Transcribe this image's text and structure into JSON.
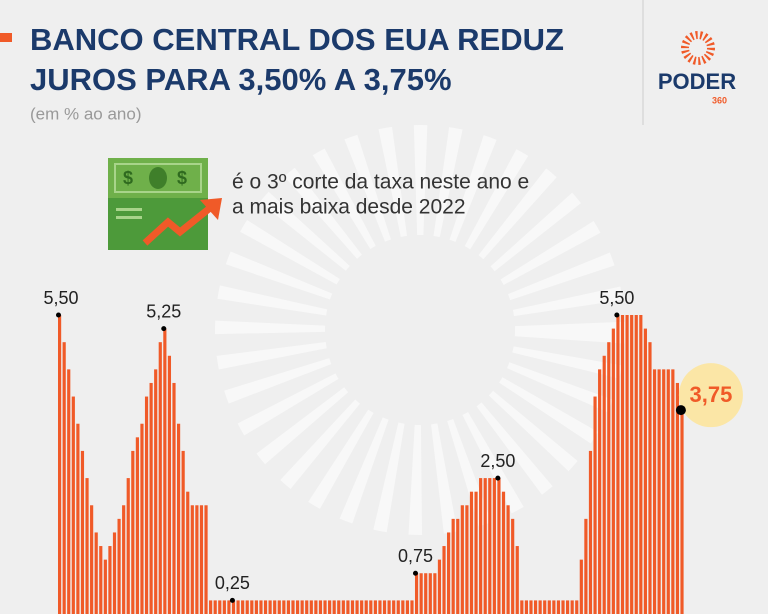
{
  "header": {
    "title": [
      "BANCO CENTRAL DOS EUA REDUZ",
      "JUROS PARA 3,50% A 3,75%"
    ],
    "subtitle": "(em % ao ano)",
    "logo": "PODER",
    "logo_sub": "360"
  },
  "callout": [
    "é o 3º corte da taxa neste ano e",
    "a mais baixa desde 2022"
  ],
  "chart_data": {
    "type": "bar",
    "color": "#f05a28",
    "ylim": [
      0,
      5.5
    ],
    "values": [
      5.5,
      5.0,
      4.5,
      4.0,
      3.5,
      3.0,
      2.5,
      2.0,
      1.5,
      1.25,
      1.0,
      1.25,
      1.5,
      1.75,
      2.0,
      2.5,
      3.0,
      3.25,
      3.5,
      4.0,
      4.25,
      4.5,
      5.0,
      5.25,
      4.75,
      4.25,
      3.5,
      3.0,
      2.25,
      2.0,
      2.0,
      2.0,
      2.0,
      0.25,
      0.25,
      0.25,
      0.25,
      0.25,
      0.25,
      0.25,
      0.25,
      0.25,
      0.25,
      0.25,
      0.25,
      0.25,
      0.25,
      0.25,
      0.25,
      0.25,
      0.25,
      0.25,
      0.25,
      0.25,
      0.25,
      0.25,
      0.25,
      0.25,
      0.25,
      0.25,
      0.25,
      0.25,
      0.25,
      0.25,
      0.25,
      0.25,
      0.25,
      0.25,
      0.25,
      0.25,
      0.25,
      0.25,
      0.25,
      0.25,
      0.25,
      0.25,
      0.25,
      0.25,
      0.75,
      0.75,
      0.75,
      0.75,
      0.75,
      1.0,
      1.25,
      1.5,
      1.75,
      1.75,
      2.0,
      2.0,
      2.25,
      2.25,
      2.5,
      2.5,
      2.5,
      2.5,
      2.5,
      2.25,
      2.0,
      1.75,
      1.25,
      0.25,
      0.25,
      0.25,
      0.25,
      0.25,
      0.25,
      0.25,
      0.25,
      0.25,
      0.25,
      0.25,
      0.25,
      0.25,
      1.0,
      1.75,
      3.0,
      4.0,
      4.5,
      4.75,
      5.0,
      5.25,
      5.5,
      5.5,
      5.5,
      5.5,
      5.5,
      5.5,
      5.25,
      5.0,
      4.5,
      4.5,
      4.5,
      4.5,
      4.5,
      4.25,
      3.75
    ],
    "value_labels": [
      "5,50",
      null,
      null,
      null,
      null,
      null,
      null,
      null,
      null,
      null,
      null,
      null,
      null,
      null,
      null,
      null,
      null,
      null,
      null,
      null,
      null,
      null,
      null,
      "5,25",
      null,
      null,
      null,
      null,
      null,
      null,
      null,
      null,
      null,
      null,
      null,
      null,
      null,
      null,
      "0,25",
      null,
      null,
      null,
      null,
      null,
      null,
      null,
      null,
      null,
      null,
      null,
      null,
      null,
      null,
      null,
      null,
      null,
      null,
      null,
      null,
      null,
      null,
      null,
      null,
      null,
      null,
      null,
      null,
      null,
      null,
      null,
      null,
      null,
      null,
      null,
      null,
      null,
      null,
      null,
      "0,75",
      null,
      null,
      null,
      null,
      null,
      null,
      null,
      null,
      null,
      null,
      null,
      null,
      null,
      null,
      null,
      null,
      null,
      "2,50",
      null,
      null,
      null,
      null,
      null,
      null,
      null,
      null,
      null,
      null,
      null,
      null,
      null,
      null,
      null,
      null,
      null,
      null,
      null,
      null,
      null,
      null,
      null,
      null,
      null,
      "5,50",
      null,
      null,
      null,
      null,
      null,
      null,
      null,
      null,
      null,
      null,
      null,
      null,
      null,
      "3,75"
    ]
  }
}
